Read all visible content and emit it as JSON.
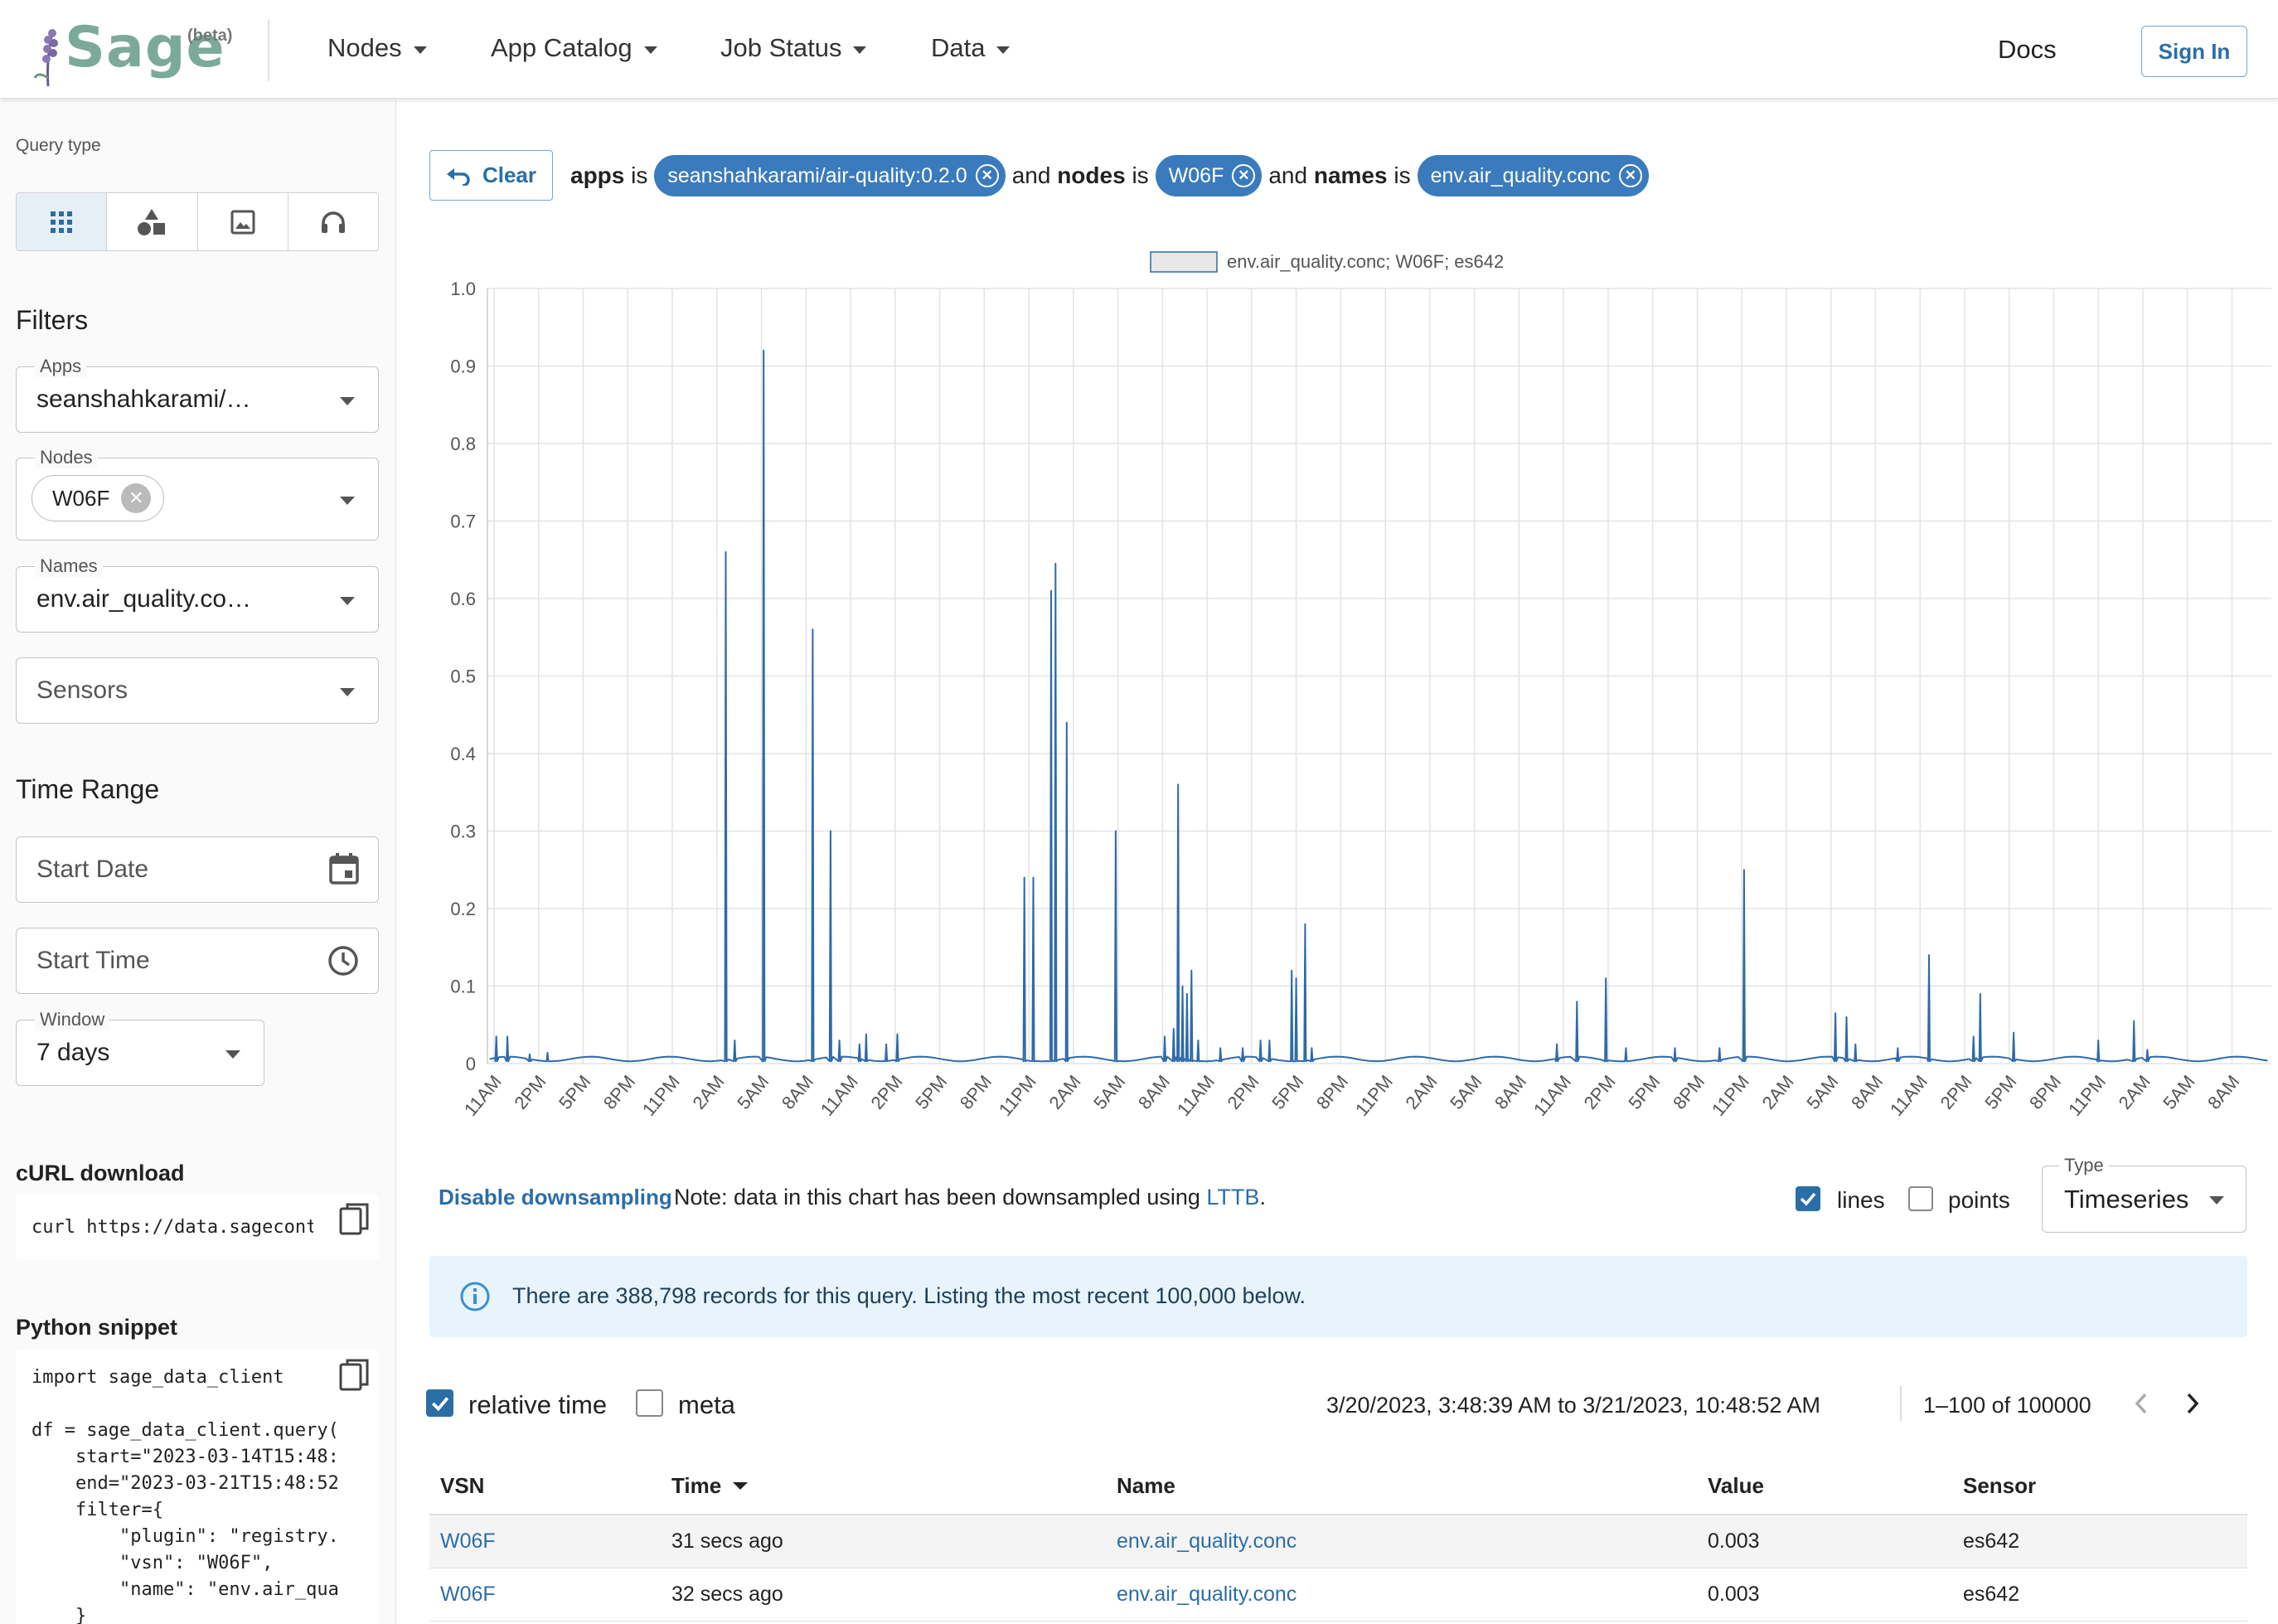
{
  "header": {
    "logo_text": "Sage",
    "logo_badge": "(beta)",
    "nav": [
      {
        "label": "Nodes"
      },
      {
        "label": "App Catalog"
      },
      {
        "label": "Job Status"
      },
      {
        "label": "Data"
      }
    ],
    "docs_label": "Docs",
    "signin_label": "Sign In"
  },
  "sidebar": {
    "query_type_label": "Query type",
    "query_type_icons": [
      "grid-icon",
      "shapes-icon",
      "image-icon",
      "headphones-icon"
    ],
    "filters_heading": "Filters",
    "apps": {
      "label": "Apps",
      "value": "seanshahkarami/…"
    },
    "nodes": {
      "label": "Nodes",
      "chip": "W06F"
    },
    "names": {
      "label": "Names",
      "value": "env.air_quality.co…"
    },
    "sensors": {
      "placeholder": "Sensors"
    },
    "time_range_heading": "Time Range",
    "start_date": {
      "placeholder": "Start Date"
    },
    "start_time": {
      "placeholder": "Start Time"
    },
    "window": {
      "label": "Window",
      "value": "7 days"
    },
    "curl_heading": "cURL download",
    "curl_snippet": "curl https://data.sagecontinuum.org",
    "python_heading": "Python snippet",
    "python_snippet": [
      "import sage_data_client",
      "",
      "df = sage_data_client.query(",
      "    start=\"2023-03-14T15:48:",
      "    end=\"2023-03-21T15:48:52",
      "    filter={",
      "        \"plugin\": \"registry.",
      "        \"vsn\": \"W06F\",",
      "        \"name\": \"env.air_qua",
      "    }"
    ]
  },
  "query_bar": {
    "clear_label": "Clear",
    "apps_key": "apps",
    "is_word": "is",
    "and_word": "and",
    "apps_value": "seanshahkarami/air-quality:0.2.0",
    "nodes_key": "nodes",
    "nodes_value": "W06F",
    "names_key": "names",
    "names_value": "env.air_quality.conc"
  },
  "chart_data": {
    "type": "line",
    "title": "",
    "xlabel": "",
    "ylabel": "",
    "ylim": [
      0,
      1.0
    ],
    "yticks": [
      "0",
      "0.1",
      "0.2",
      "0.3",
      "0.4",
      "0.5",
      "0.6",
      "0.7",
      "0.8",
      "0.9",
      "1.0"
    ],
    "xticks": [
      "11AM",
      "2PM",
      "5PM",
      "8PM",
      "11PM",
      "2AM",
      "5AM",
      "8AM",
      "11AM",
      "2PM",
      "5PM",
      "8PM",
      "11PM",
      "2AM",
      "5AM",
      "8AM",
      "11AM",
      "2PM",
      "5PM",
      "8PM",
      "11PM",
      "2AM",
      "5AM",
      "8AM",
      "11AM",
      "2PM",
      "5PM",
      "8PM",
      "11PM",
      "2AM",
      "5AM",
      "8AM",
      "11AM",
      "2PM",
      "5PM",
      "8PM",
      "11PM",
      "2AM",
      "5AM",
      "8AM"
    ],
    "grid": true,
    "legend_position": "top-center",
    "line_color": "#2f6aa8",
    "series": [
      {
        "name": "env.air_quality.conc; W06F; es642",
        "baseline": 0.003,
        "spikes": [
          [
            0.05,
            0.035
          ],
          [
            0.3,
            0.035
          ],
          [
            0.8,
            0.012
          ],
          [
            1.2,
            0.014
          ],
          [
            5.2,
            0.66
          ],
          [
            5.4,
            0.03
          ],
          [
            6.05,
            0.92
          ],
          [
            7.15,
            0.56
          ],
          [
            7.55,
            0.3
          ],
          [
            7.75,
            0.03
          ],
          [
            8.2,
            0.025
          ],
          [
            8.35,
            0.038
          ],
          [
            8.8,
            0.025
          ],
          [
            9.05,
            0.038
          ],
          [
            11.9,
            0.24
          ],
          [
            12.1,
            0.24
          ],
          [
            12.5,
            0.61
          ],
          [
            12.6,
            0.645
          ],
          [
            12.85,
            0.44
          ],
          [
            13.95,
            0.3
          ],
          [
            15.05,
            0.035
          ],
          [
            15.25,
            0.045
          ],
          [
            15.35,
            0.36
          ],
          [
            15.45,
            0.1
          ],
          [
            15.55,
            0.09
          ],
          [
            15.65,
            0.12
          ],
          [
            15.8,
            0.03
          ],
          [
            16.3,
            0.02
          ],
          [
            16.8,
            0.02
          ],
          [
            17.2,
            0.03
          ],
          [
            17.4,
            0.03
          ],
          [
            17.9,
            0.12
          ],
          [
            18.0,
            0.11
          ],
          [
            18.2,
            0.18
          ],
          [
            18.35,
            0.02
          ],
          [
            23.85,
            0.025
          ],
          [
            24.3,
            0.08
          ],
          [
            24.95,
            0.11
          ],
          [
            25.4,
            0.02
          ],
          [
            26.5,
            0.02
          ],
          [
            27.5,
            0.02
          ],
          [
            28.05,
            0.25
          ],
          [
            30.1,
            0.065
          ],
          [
            30.35,
            0.06
          ],
          [
            30.55,
            0.025
          ],
          [
            31.5,
            0.02
          ],
          [
            32.2,
            0.14
          ],
          [
            33.2,
            0.035
          ],
          [
            33.35,
            0.09
          ],
          [
            34.1,
            0.04
          ],
          [
            36.0,
            0.03
          ],
          [
            36.8,
            0.055
          ],
          [
            37.1,
            0.018
          ]
        ]
      }
    ]
  },
  "chart_options": {
    "disable_downsampling": "Disable downsampling",
    "note_prefix": "Note: data in this chart has been downsampled using",
    "lttb_link": "LTTB",
    "note_suffix": ".",
    "lines_label": "lines",
    "lines_checked": true,
    "points_label": "points",
    "points_checked": false,
    "type_label": "Type",
    "type_value": "Timeseries"
  },
  "info_banner": {
    "text": "There are 388,798 records for this query. Listing the most recent 100,000 below."
  },
  "table_controls": {
    "relative_time_label": "relative time",
    "relative_time_checked": true,
    "meta_label": "meta",
    "meta_checked": false,
    "range_text": "3/20/2023, 3:48:39 AM to 3/21/2023, 10:48:52 AM",
    "pagination_text": "1–100 of 100000"
  },
  "table": {
    "columns": [
      "VSN",
      "Time",
      "Name",
      "Value",
      "Sensor"
    ],
    "rows": [
      {
        "vsn": "W06F",
        "time": "31 secs ago",
        "name": "env.air_quality.conc",
        "value": "0.003",
        "sensor": "es642"
      },
      {
        "vsn": "W06F",
        "time": "32 secs ago",
        "name": "env.air_quality.conc",
        "value": "0.003",
        "sensor": "es642"
      }
    ]
  },
  "colors": {
    "accent": "#2b6ea6",
    "chip": "#3a7bbd",
    "info_bg": "#e8f4fc",
    "logo": "#7ba99a"
  }
}
